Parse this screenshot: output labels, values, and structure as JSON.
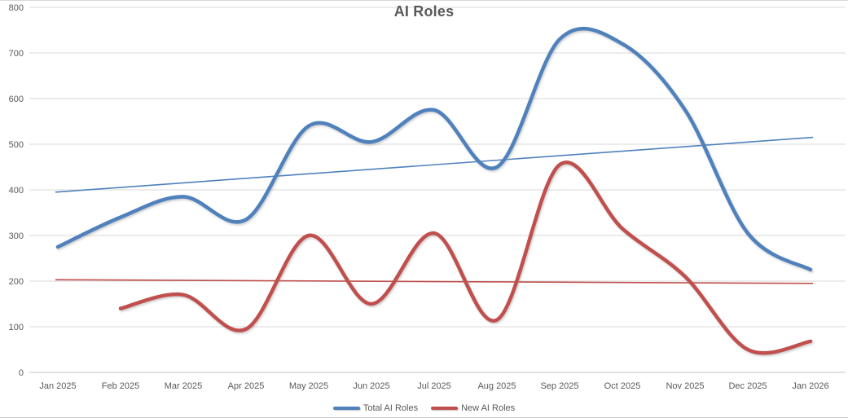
{
  "chart_data": {
    "type": "line",
    "title": "AI Roles",
    "categories": [
      "Jan 2025",
      "Feb 2025",
      "Mar 2025",
      "Apr 2025",
      "May 2025",
      "Jun 2025",
      "Jul 2025",
      "Aug 2025",
      "Sep 2025",
      "Oct 2025",
      "Nov 2025",
      "Dec 2025",
      "Jan 2026"
    ],
    "series": [
      {
        "name": "Total AI Roles",
        "color": "#4F81BD",
        "smooth": true,
        "line_width": 4.5,
        "values": [
          275,
          340,
          385,
          335,
          540,
          505,
          575,
          450,
          730,
          720,
          575,
          305,
          225
        ]
      },
      {
        "name": "New AI Roles",
        "color": "#C0504D",
        "smooth": true,
        "line_width": 4.5,
        "values": [
          null,
          140,
          170,
          95,
          300,
          150,
          305,
          115,
          455,
          315,
          210,
          50,
          68
        ]
      }
    ],
    "trendlines": [
      {
        "series": "Total AI Roles",
        "type": "linear",
        "color": "#4F81BD",
        "line_width": 1.6,
        "start": 395,
        "end": 515
      },
      {
        "series": "New AI Roles",
        "type": "linear",
        "color": "#C0504D",
        "line_width": 1.6,
        "start": 203,
        "end": 195
      }
    ],
    "xlabel": "",
    "ylabel": "",
    "ylim": [
      0,
      800
    ],
    "yticks": [
      0,
      100,
      200,
      300,
      400,
      500,
      600,
      700,
      800
    ],
    "grid": true,
    "legend_position": "bottom-center",
    "legend": [
      "Total AI Roles",
      "New AI Roles"
    ]
  },
  "style": {
    "text_color": "#595959",
    "gridline_color": "#D9D9D9",
    "axis_line_color": "#C3C3C3",
    "background": "#FFFFFF"
  }
}
